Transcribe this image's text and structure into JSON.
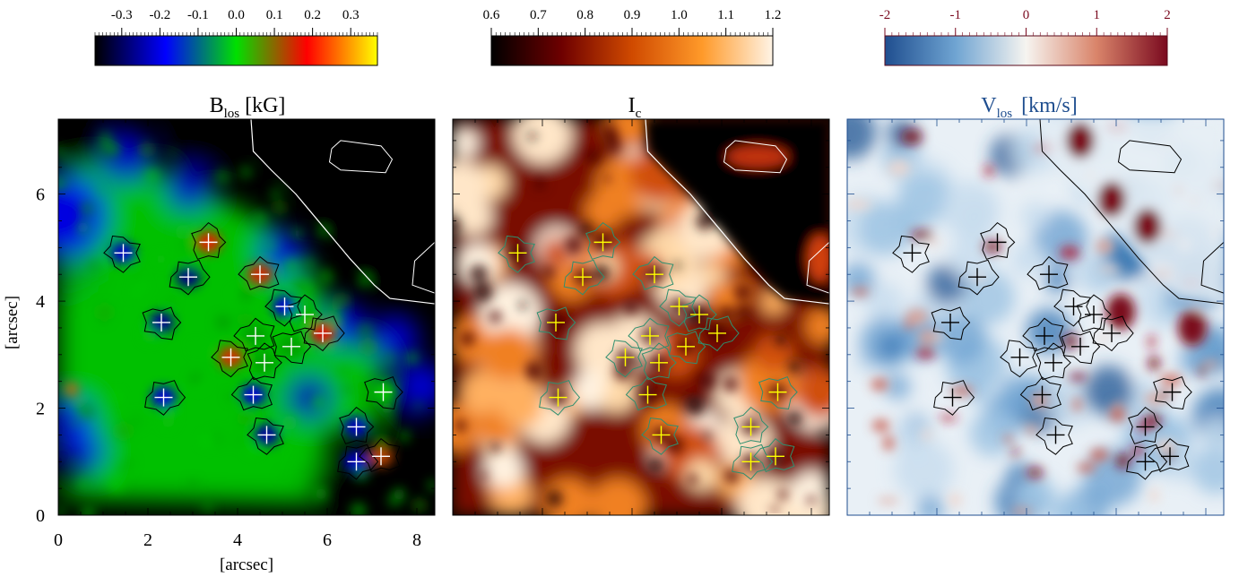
{
  "chart_data": [
    {
      "type": "heatmap",
      "title": "B",
      "title_sub": "los",
      "title_unit": "[kG]",
      "colorbar": {
        "ticks": [
          "-0.3",
          "-0.2",
          "-0.1",
          "0.0",
          "0.1",
          "0.2",
          "0.3"
        ],
        "tick_values": [
          -0.3,
          -0.2,
          -0.1,
          0.0,
          0.1,
          0.2,
          0.3
        ],
        "range": [
          -0.37,
          0.37
        ],
        "colormap": [
          "#000000",
          "#0000ff",
          "#00e000",
          "#ff0000",
          "#ffff00"
        ]
      },
      "xlabel": "[arcsec]",
      "ylabel": "[arcsec]",
      "xlim": [
        0,
        8.4
      ],
      "ylim": [
        0,
        7.4
      ],
      "x_ticks": [
        "0",
        "2",
        "4",
        "6",
        "8"
      ],
      "y_ticks": [
        "0",
        "2",
        "4",
        "6"
      ],
      "contour_color": "#000000",
      "marker_color": "#ffffff"
    },
    {
      "type": "heatmap",
      "title": "I",
      "title_sub": "c",
      "title_unit": "",
      "colorbar": {
        "ticks": [
          "0.6",
          "0.7",
          "0.8",
          "0.9",
          "1.0",
          "1.1",
          "1.2"
        ],
        "tick_values": [
          0.6,
          0.7,
          0.8,
          0.9,
          1.0,
          1.1,
          1.2
        ],
        "range": [
          0.6,
          1.2
        ],
        "colormap": [
          "#000000",
          "#6e0000",
          "#d04a00",
          "#ff9a2a",
          "#fff4e6"
        ]
      },
      "xlim": [
        0,
        8.4
      ],
      "ylim": [
        0,
        7.4
      ],
      "contour_color": "#2f8f6f",
      "marker_color": "#ffff00"
    },
    {
      "type": "heatmap",
      "title": "V",
      "title_sub": "los",
      "title_unit": "[km/s]",
      "colorbar": {
        "ticks": [
          "-2",
          "-1",
          "0",
          "1",
          "2"
        ],
        "tick_values": [
          -2,
          -1,
          0,
          1,
          2
        ],
        "range": [
          -2,
          2
        ],
        "colormap": [
          "#1f4e8f",
          "#6fa4d2",
          "#f6f4f0",
          "#d9846a",
          "#7a0a1f"
        ]
      },
      "xlim": [
        0,
        8.4
      ],
      "ylim": [
        0,
        7.4
      ],
      "contour_color": "#000000",
      "marker_color": "#000000"
    }
  ],
  "pore_centers": [
    [
      1.45,
      4.9
    ],
    [
      3.35,
      5.1
    ],
    [
      2.9,
      4.45
    ],
    [
      4.5,
      4.5
    ],
    [
      2.3,
      3.6
    ],
    [
      5.05,
      3.9
    ],
    [
      5.5,
      3.75
    ],
    [
      5.9,
      3.4
    ],
    [
      4.4,
      3.35
    ],
    [
      5.2,
      3.15
    ],
    [
      3.85,
      2.95
    ],
    [
      4.6,
      2.85
    ],
    [
      2.35,
      2.2
    ],
    [
      4.35,
      2.25
    ],
    [
      7.25,
      2.3
    ],
    [
      4.65,
      1.5
    ],
    [
      6.65,
      1.65
    ],
    [
      6.65,
      1.0
    ],
    [
      7.2,
      1.1
    ]
  ]
}
